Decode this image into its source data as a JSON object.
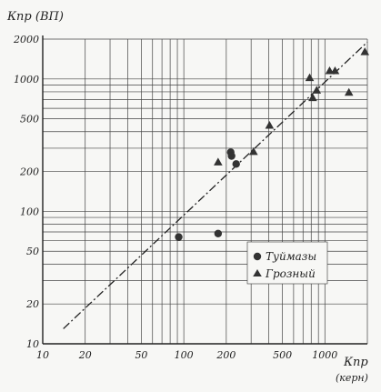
{
  "chart_data": {
    "type": "scatter",
    "x_scale": "log",
    "y_scale": "log",
    "xlim": [
      10,
      2000
    ],
    "ylim": [
      10,
      2000
    ],
    "ylabel": "Кпр (ВП)",
    "xlabel_line1": "Кпр",
    "xlabel_line2": "(керн)",
    "x_ticks": [
      {
        "value": 10,
        "label": "10"
      },
      {
        "value": 20,
        "label": "20"
      },
      {
        "value": 50,
        "label": "50"
      },
      {
        "value": 100,
        "label": "100"
      },
      {
        "value": 200,
        "label": "200"
      },
      {
        "value": 500,
        "label": "500"
      },
      {
        "value": 1000,
        "label": "1000"
      }
    ],
    "y_ticks": [
      {
        "value": 10,
        "label": "10"
      },
      {
        "value": 20,
        "label": "20"
      },
      {
        "value": 50,
        "label": "50"
      },
      {
        "value": 100,
        "label": "100"
      },
      {
        "value": 200,
        "label": "200"
      },
      {
        "value": 500,
        "label": "500"
      },
      {
        "value": 1000,
        "label": "1000"
      },
      {
        "value": 2000,
        "label": "2000"
      }
    ],
    "grid": true,
    "legend_position": "lower-right",
    "series": [
      {
        "name": "Туймазы",
        "marker": "circle",
        "points": [
          {
            "x": 92,
            "y": 64
          },
          {
            "x": 175,
            "y": 68
          },
          {
            "x": 215,
            "y": 280
          },
          {
            "x": 218,
            "y": 262
          },
          {
            "x": 235,
            "y": 228
          }
        ]
      },
      {
        "name": "Грозный",
        "marker": "triangle",
        "points": [
          {
            "x": 175,
            "y": 235
          },
          {
            "x": 312,
            "y": 282
          },
          {
            "x": 405,
            "y": 445
          },
          {
            "x": 780,
            "y": 1020
          },
          {
            "x": 820,
            "y": 720
          },
          {
            "x": 875,
            "y": 820
          },
          {
            "x": 1080,
            "y": 1150
          },
          {
            "x": 1180,
            "y": 1150
          },
          {
            "x": 1480,
            "y": 790
          },
          {
            "x": 1920,
            "y": 1600
          }
        ]
      }
    ],
    "reference_line": {
      "style": "dash-dot",
      "from": [
        14,
        13
      ],
      "to": [
        2000,
        1900
      ]
    }
  },
  "colors": {
    "ink": "#222222",
    "grid": "#444444",
    "paper": "#f7f7f5"
  }
}
